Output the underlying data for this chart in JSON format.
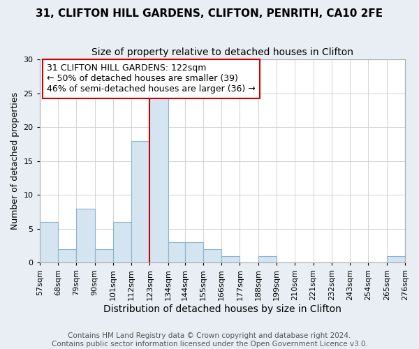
{
  "title": "31, CLIFTON HILL GARDENS, CLIFTON, PENRITH, CA10 2FE",
  "subtitle": "Size of property relative to detached houses in Clifton",
  "xlabel": "Distribution of detached houses by size in Clifton",
  "ylabel": "Number of detached properties",
  "bin_edges": [
    57,
    68,
    79,
    90,
    101,
    112,
    123,
    134,
    144,
    155,
    166,
    177,
    188,
    199,
    210,
    221,
    232,
    243,
    254,
    265,
    276
  ],
  "bar_heights": [
    6,
    2,
    8,
    2,
    6,
    18,
    25,
    3,
    3,
    2,
    1,
    0,
    1,
    0,
    0,
    0,
    0,
    0,
    0,
    1
  ],
  "bar_color": "#d4e4f0",
  "bar_edgecolor": "#8ab4cc",
  "vline_x": 123,
  "vline_color": "#cc0000",
  "ylim": [
    0,
    30
  ],
  "yticks": [
    0,
    5,
    10,
    15,
    20,
    25,
    30
  ],
  "annotation_title": "31 CLIFTON HILL GARDENS: 122sqm",
  "annotation_line1": "← 50% of detached houses are smaller (39)",
  "annotation_line2": "46% of semi-detached houses are larger (36) →",
  "annotation_box_edgecolor": "#cc0000",
  "footer_line1": "Contains HM Land Registry data © Crown copyright and database right 2024.",
  "footer_line2": "Contains public sector information licensed under the Open Government Licence v3.0.",
  "figure_facecolor": "#e8eef4",
  "plot_facecolor": "#ffffff",
  "title_fontsize": 11,
  "subtitle_fontsize": 10,
  "xlabel_fontsize": 10,
  "ylabel_fontsize": 9,
  "tick_fontsize": 8,
  "annotation_fontsize": 9,
  "footer_fontsize": 7.5
}
